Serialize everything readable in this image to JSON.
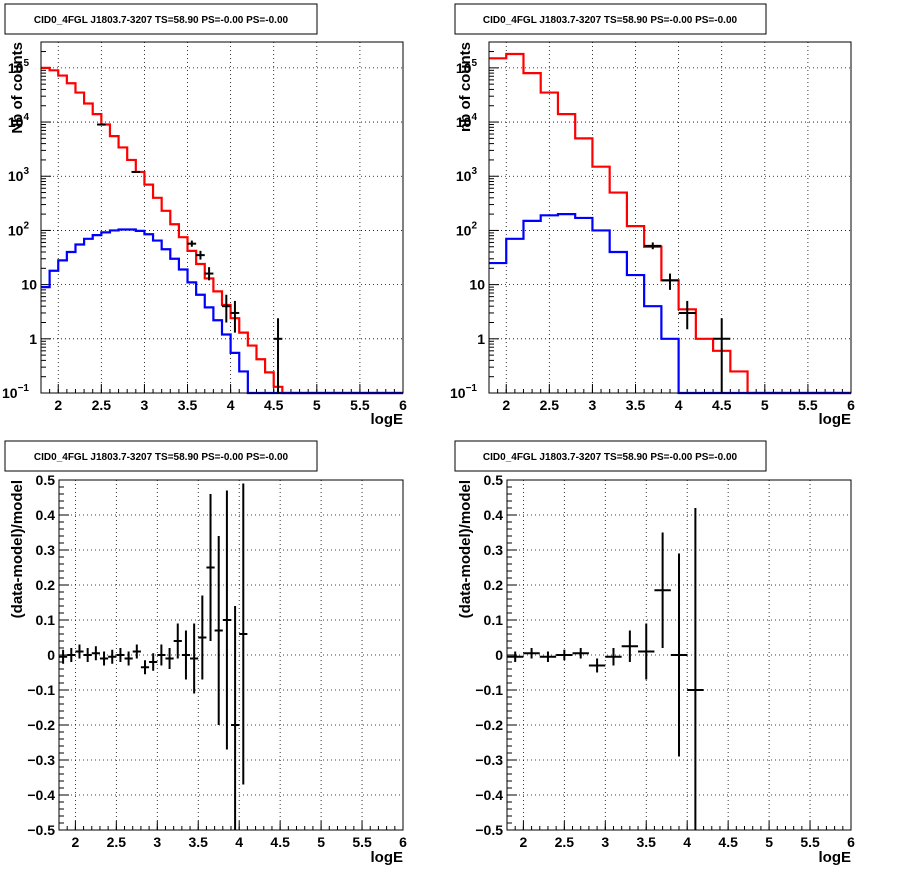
{
  "chart_data": [
    {
      "type": "line",
      "title": "CID0_4FGL J1803.7-3207 TS=58.90 PS=-0.00 PS=-0.00",
      "xlabel": "logE",
      "ylabel": "Nb of counts",
      "xlim": [
        1.8,
        6.0
      ],
      "ylim": [
        0.1,
        300000
      ],
      "yscale": "log",
      "grid": true,
      "bin_edges": [
        1.8,
        1.9,
        2.0,
        2.1,
        2.2,
        2.3,
        2.4,
        2.5,
        2.6,
        2.7,
        2.8,
        2.9,
        3.0,
        3.1,
        3.2,
        3.3,
        3.4,
        3.5,
        3.6,
        3.7,
        3.8,
        3.9,
        4.0,
        4.1,
        4.2,
        4.3,
        4.4,
        4.5,
        4.6,
        4.7,
        4.8,
        4.9,
        5.0,
        5.1,
        5.2,
        5.3,
        5.4,
        5.5,
        5.6,
        5.7,
        5.8,
        5.9,
        6.0
      ],
      "series": [
        {
          "color": "#ff0000",
          "values": [
            100000,
            90000,
            72000,
            52000,
            35000,
            22000,
            14000,
            9000,
            5500,
            3400,
            2000,
            1200,
            700,
            400,
            230,
            130,
            75,
            42,
            24,
            13,
            7.5,
            4.2,
            2.4,
            1.3,
            0.75,
            0.42,
            0.24,
            0.13,
            0.1,
            0.1,
            0.1,
            0.1,
            0.1,
            0.1,
            0.1,
            0.1,
            0.1,
            0.1,
            0.1,
            0.1,
            0.1,
            0.1
          ]
        },
        {
          "color": "#0000ff",
          "values": [
            9,
            18,
            28,
            40,
            55,
            70,
            82,
            92,
            100,
            104,
            104,
            98,
            85,
            65,
            45,
            30,
            19,
            11,
            6.5,
            3.8,
            2.2,
            1.2,
            0.55,
            0.25,
            0.1,
            0.1,
            0.1,
            0.1,
            0.1,
            0.1,
            0.1,
            0.1,
            0.1,
            0.1,
            0.1,
            0.1,
            0.1,
            0.1,
            0.1,
            0.1,
            0.1,
            0.1
          ]
        }
      ],
      "points": [
        {
          "x": 2.5,
          "y": 9000,
          "xerr": 0.05,
          "ylo": 8800,
          "yhi": 9200
        },
        {
          "x": 2.9,
          "y": 1200,
          "xerr": 0.05,
          "ylo": 1150,
          "yhi": 1250
        },
        {
          "x": 3.55,
          "y": 57,
          "xerr": 0.05,
          "ylo": 50,
          "yhi": 65
        },
        {
          "x": 3.65,
          "y": 35,
          "xerr": 0.05,
          "ylo": 29,
          "yhi": 42
        },
        {
          "x": 3.75,
          "y": 16,
          "xerr": 0.05,
          "ylo": 12,
          "yhi": 21
        },
        {
          "x": 3.95,
          "y": 4,
          "xerr": 0.05,
          "ylo": 2,
          "yhi": 6.5
        },
        {
          "x": 4.05,
          "y": 3,
          "xerr": 0.05,
          "ylo": 1.3,
          "yhi": 5
        },
        {
          "x": 4.55,
          "y": 1,
          "xerr": 0.05,
          "ylo": 0.1,
          "yhi": 2.4
        }
      ]
    },
    {
      "type": "line",
      "title": "CID0_4FGL J1803.7-3207 TS=58.90 PS=-0.00 PS=-0.00",
      "xlabel": "logE",
      "ylabel": "nb of counts",
      "xlim": [
        1.8,
        6.0
      ],
      "ylim": [
        0.1,
        300000
      ],
      "yscale": "log",
      "grid": true,
      "bin_edges": [
        1.8,
        2.0,
        2.2,
        2.4,
        2.6,
        2.8,
        3.0,
        3.2,
        3.4,
        3.6,
        3.8,
        4.0,
        4.2,
        4.4,
        4.6,
        4.8,
        5.0,
        5.2,
        5.4,
        5.6,
        5.8,
        6.0
      ],
      "series": [
        {
          "color": "#ff0000",
          "values": [
            150000,
            180000,
            80000,
            35000,
            14000,
            5000,
            1500,
            500,
            120,
            50,
            12,
            3.5,
            1,
            0.6,
            0.25,
            0.1,
            0.1,
            0.1,
            0.1,
            0.1,
            0.1
          ]
        },
        {
          "color": "#0000ff",
          "values": [
            25,
            70,
            150,
            190,
            200,
            170,
            100,
            40,
            15,
            4,
            1,
            0.1,
            0.1,
            0.1,
            0.1,
            0.1,
            0.1,
            0.1,
            0.1,
            0.1,
            0.1
          ]
        }
      ],
      "points": [
        {
          "x": 3.7,
          "y": 52,
          "xerr": 0.1,
          "ylo": 45,
          "yhi": 60
        },
        {
          "x": 3.9,
          "y": 12,
          "xerr": 0.1,
          "ylo": 8,
          "yhi": 16
        },
        {
          "x": 4.1,
          "y": 3,
          "xerr": 0.1,
          "ylo": 1.5,
          "yhi": 5
        },
        {
          "x": 4.5,
          "y": 1,
          "xerr": 0.1,
          "ylo": 0.1,
          "yhi": 2.4
        }
      ]
    },
    {
      "type": "scatter",
      "title": "CID0_4FGL J1803.7-3207 TS=58.90 PS=-0.00 PS=-0.00",
      "xlabel": "logE",
      "ylabel": "(data-model)/model",
      "xlim": [
        1.8,
        6.0
      ],
      "ylim": [
        -0.5,
        0.5
      ],
      "grid": true,
      "points": [
        {
          "x": 1.85,
          "y": -0.005,
          "xerr": 0.05,
          "err": 0.02
        },
        {
          "x": 1.95,
          "y": 0.0,
          "xerr": 0.05,
          "err": 0.02
        },
        {
          "x": 2.05,
          "y": 0.01,
          "xerr": 0.05,
          "err": 0.02
        },
        {
          "x": 2.15,
          "y": 0.0,
          "xerr": 0.05,
          "err": 0.02
        },
        {
          "x": 2.25,
          "y": 0.005,
          "xerr": 0.05,
          "err": 0.02
        },
        {
          "x": 2.35,
          "y": -0.01,
          "xerr": 0.05,
          "err": 0.02
        },
        {
          "x": 2.45,
          "y": -0.005,
          "xerr": 0.05,
          "err": 0.02
        },
        {
          "x": 2.55,
          "y": 0.0,
          "xerr": 0.05,
          "err": 0.02
        },
        {
          "x": 2.65,
          "y": -0.01,
          "xerr": 0.05,
          "err": 0.02
        },
        {
          "x": 2.75,
          "y": 0.01,
          "xerr": 0.05,
          "err": 0.02
        },
        {
          "x": 2.85,
          "y": -0.035,
          "xerr": 0.05,
          "err": 0.02
        },
        {
          "x": 2.95,
          "y": -0.02,
          "xerr": 0.05,
          "err": 0.025
        },
        {
          "x": 3.05,
          "y": 0.0,
          "xerr": 0.05,
          "err": 0.03
        },
        {
          "x": 3.15,
          "y": -0.01,
          "xerr": 0.05,
          "err": 0.03
        },
        {
          "x": 3.25,
          "y": 0.04,
          "xerr": 0.05,
          "err": 0.05
        },
        {
          "x": 3.35,
          "y": 0.0,
          "xerr": 0.05,
          "err": 0.07
        },
        {
          "x": 3.45,
          "y": -0.01,
          "xerr": 0.05,
          "err": 0.1
        },
        {
          "x": 3.55,
          "y": 0.05,
          "xerr": 0.05,
          "err": 0.12
        },
        {
          "x": 3.65,
          "y": 0.25,
          "xerr": 0.05,
          "err": 0.21
        },
        {
          "x": 3.75,
          "y": 0.07,
          "xerr": 0.05,
          "err": 0.27
        },
        {
          "x": 3.85,
          "y": 0.1,
          "xerr": 0.05,
          "err": 0.37
        },
        {
          "x": 3.95,
          "y": -0.2,
          "xerr": 0.05,
          "err": 0.34
        },
        {
          "x": 4.05,
          "y": 0.06,
          "xerr": 0.05,
          "err": 0.43
        }
      ]
    },
    {
      "type": "scatter",
      "title": "CID0_4FGL J1803.7-3207 TS=58.90 PS=-0.00 PS=-0.00",
      "xlabel": "logE",
      "ylabel": "(data-model)/model",
      "xlim": [
        1.8,
        6.0
      ],
      "ylim": [
        -0.5,
        0.5
      ],
      "grid": true,
      "points": [
        {
          "x": 1.9,
          "y": -0.005,
          "xerr": 0.1,
          "err": 0.015
        },
        {
          "x": 2.1,
          "y": 0.005,
          "xerr": 0.1,
          "err": 0.015
        },
        {
          "x": 2.3,
          "y": -0.005,
          "xerr": 0.1,
          "err": 0.015
        },
        {
          "x": 2.5,
          "y": 0.0,
          "xerr": 0.1,
          "err": 0.015
        },
        {
          "x": 2.7,
          "y": 0.005,
          "xerr": 0.1,
          "err": 0.015
        },
        {
          "x": 2.9,
          "y": -0.03,
          "xerr": 0.1,
          "err": 0.02
        },
        {
          "x": 3.1,
          "y": -0.005,
          "xerr": 0.1,
          "err": 0.025
        },
        {
          "x": 3.3,
          "y": 0.025,
          "xerr": 0.1,
          "err": 0.045
        },
        {
          "x": 3.5,
          "y": 0.01,
          "xerr": 0.1,
          "err": 0.08
        },
        {
          "x": 3.7,
          "y": 0.185,
          "xerr": 0.1,
          "err": 0.165
        },
        {
          "x": 3.9,
          "y": 0.0,
          "xerr": 0.1,
          "err": 0.29
        },
        {
          "x": 4.1,
          "y": -0.1,
          "xerr": 0.1,
          "err": 0.52
        }
      ]
    }
  ]
}
